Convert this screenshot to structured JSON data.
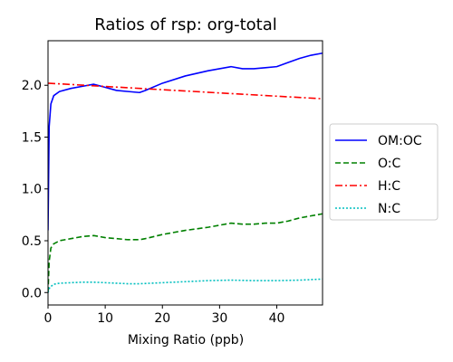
{
  "chart_data": {
    "type": "line",
    "title": "Ratios of rsp: org-total",
    "xlabel": "Mixing Ratio (ppb)",
    "ylabel": "",
    "xlim": [
      0,
      48
    ],
    "ylim": [
      -0.12,
      2.43
    ],
    "xticks": [
      0,
      10,
      20,
      30,
      40
    ],
    "yticks": [
      0.0,
      0.5,
      1.0,
      1.5,
      2.0
    ],
    "xtick_labels": [
      "0",
      "10",
      "20",
      "30",
      "40"
    ],
    "ytick_labels": [
      "0.0",
      "0.5",
      "1.0",
      "1.5",
      "2.0"
    ],
    "grid": false,
    "legend_position": "right-outside",
    "series": [
      {
        "name": "OM:OC",
        "color": "#0000ff",
        "style": "solid",
        "x": [
          0,
          0.2,
          0.5,
          1,
          2,
          4,
          6,
          8,
          10,
          12,
          14,
          16,
          17,
          20,
          24,
          28,
          32,
          34,
          36,
          38,
          40,
          42,
          44,
          46,
          48
        ],
        "y": [
          0.6,
          1.6,
          1.82,
          1.9,
          1.94,
          1.97,
          1.99,
          2.01,
          1.98,
          1.95,
          1.94,
          1.93,
          1.95,
          2.02,
          2.09,
          2.14,
          2.18,
          2.16,
          2.16,
          2.17,
          2.18,
          2.22,
          2.26,
          2.29,
          2.31
        ]
      },
      {
        "name": "O:C",
        "color": "#008000",
        "style": "dashed",
        "x": [
          0,
          0.2,
          0.5,
          1,
          2,
          4,
          6,
          8,
          10,
          12,
          14,
          16,
          17,
          20,
          24,
          28,
          32,
          34,
          36,
          38,
          40,
          42,
          44,
          46,
          48
        ],
        "y": [
          0.0,
          0.3,
          0.43,
          0.47,
          0.5,
          0.52,
          0.54,
          0.55,
          0.53,
          0.52,
          0.51,
          0.51,
          0.52,
          0.56,
          0.6,
          0.63,
          0.67,
          0.66,
          0.66,
          0.67,
          0.67,
          0.69,
          0.72,
          0.74,
          0.76
        ]
      },
      {
        "name": "H:C",
        "color": "#ff0000",
        "style": "dashdot",
        "x": [
          0,
          48
        ],
        "y": [
          2.02,
          1.87
        ]
      },
      {
        "name": "N:C",
        "color": "#00bfbf",
        "style": "dotted",
        "x": [
          0,
          0.3,
          1,
          2,
          4,
          6,
          8,
          10,
          12,
          14,
          16,
          20,
          24,
          28,
          32,
          36,
          40,
          44,
          48
        ],
        "y": [
          0.0,
          0.05,
          0.08,
          0.09,
          0.095,
          0.1,
          0.1,
          0.095,
          0.09,
          0.085,
          0.085,
          0.095,
          0.105,
          0.115,
          0.12,
          0.115,
          0.115,
          0.12,
          0.13
        ]
      }
    ]
  }
}
